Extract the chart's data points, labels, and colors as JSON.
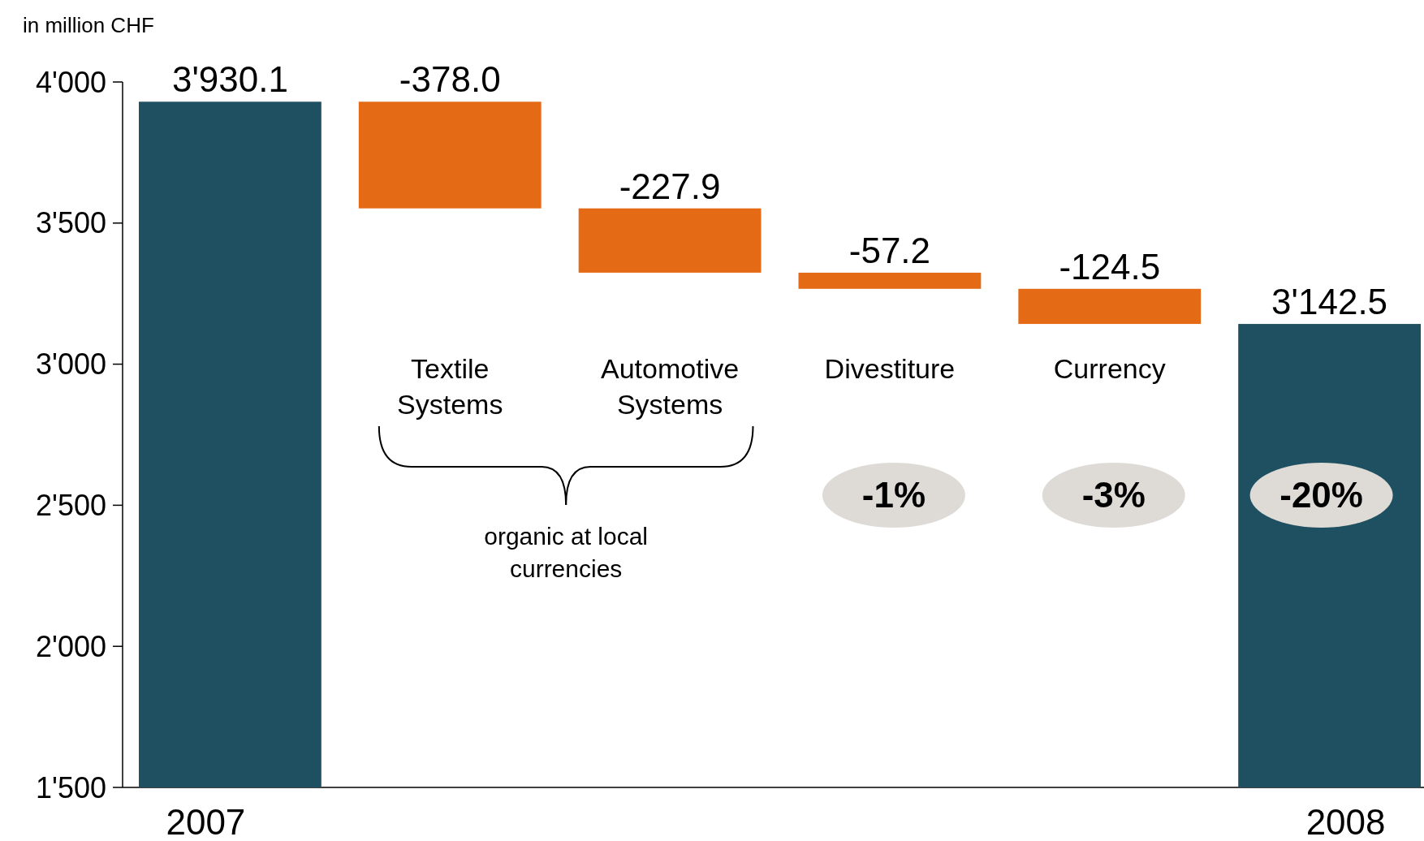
{
  "chart_data": {
    "type": "bar",
    "ylabel": "in million CHF",
    "categories": [
      "2007",
      "Textile Systems",
      "Automotive Systems",
      "Divestiture",
      "Currency",
      "2008"
    ],
    "values": [
      3930.1,
      -378.0,
      -227.9,
      -57.2,
      -124.5,
      3142.5
    ],
    "base": [
      null,
      3930.1,
      3552.1,
      3324.2,
      3267.0,
      null
    ],
    "colors": [
      "#1f5061",
      "#e56a15",
      "#e56a15",
      "#e56a15",
      "#e56a15",
      "#1f5061"
    ],
    "value_labels": [
      "3'930.1",
      "-378.0",
      "-227.9",
      "-57.2",
      "-124.5",
      "3'142.5"
    ],
    "ylim": [
      1500,
      4000
    ],
    "yticks": [
      {
        "value": 1500,
        "label": "1'500"
      },
      {
        "value": 2000,
        "label": "2'000"
      },
      {
        "value": 2500,
        "label": "2'500"
      },
      {
        "value": 3000,
        "label": "3'000"
      },
      {
        "value": 3500,
        "label": "3'500"
      },
      {
        "value": 4000,
        "label": "4'000"
      }
    ],
    "grid": false,
    "annotations": [
      "organic at local currencies",
      "-1%",
      "-3%",
      "-20%"
    ]
  }
}
